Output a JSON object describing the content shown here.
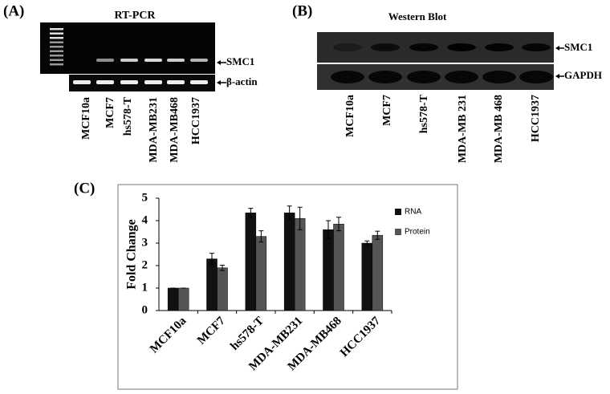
{
  "panel_a": {
    "label": "(A)",
    "title": "RT-PCR",
    "lanes": [
      "MCF10a",
      "MCF7",
      "hs578-T",
      "MDA-MB231",
      "MDA-MB468",
      "HCC1937"
    ],
    "bands": [
      "SMC1",
      "β-actin"
    ]
  },
  "panel_b": {
    "label": "(B)",
    "title": "Western Blot",
    "lanes": [
      "MCF10a",
      "MCF7",
      "hs578-T",
      "MDA-MB 231",
      "MDA-MB 468",
      "HCC1937"
    ],
    "bands": [
      "SMC1",
      "GAPDH"
    ]
  },
  "chart_data": {
    "type": "bar",
    "label": "(C)",
    "ylabel": "Fold Change",
    "categories": [
      "MCF10a",
      "MCF7",
      "hs578-T",
      "MDA-MB231",
      "MDA-MB468",
      "HCC1937"
    ],
    "series": [
      {
        "name": "RNA",
        "color": "#111111",
        "values": [
          1,
          2.3,
          4.35,
          4.35,
          3.6,
          3.0
        ],
        "errors": [
          0,
          0.25,
          0.2,
          0.3,
          0.4,
          0.1
        ]
      },
      {
        "name": "Protein",
        "color": "#555555",
        "values": [
          1,
          1.9,
          3.3,
          4.1,
          3.85,
          3.35
        ],
        "errors": [
          0,
          0.12,
          0.25,
          0.5,
          0.3,
          0.18
        ]
      }
    ],
    "ylim": [
      0,
      5
    ],
    "yticks": [
      0,
      1,
      2,
      3,
      4,
      5
    ]
  }
}
